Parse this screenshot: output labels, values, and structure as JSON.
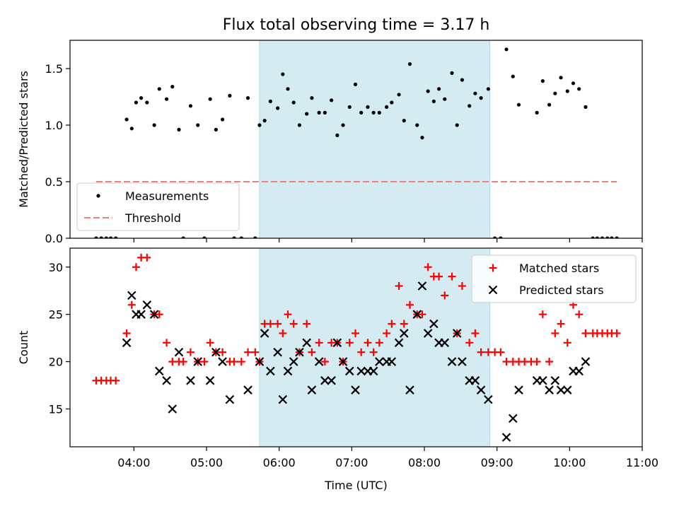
{
  "title": "Flux total observing time = 3.17 h",
  "colors": {
    "measurement": "#000000",
    "threshold": "#f08080",
    "matched": "#ff0000",
    "predicted": "#000000",
    "span": "#add8e6"
  },
  "chart_data": [
    {
      "type": "scatter",
      "ylabel": "Matched/Predicted stars",
      "ylim": [
        0,
        1.75
      ],
      "yticks": [
        0.0,
        0.5,
        1.0,
        1.5
      ],
      "xlim": [
        3.12,
        11.0
      ],
      "highlight_span": [
        5.73,
        8.9
      ],
      "legend": {
        "position": "lower-left",
        "entries": [
          "Measurements",
          "Threshold"
        ]
      },
      "threshold": {
        "name": "Threshold",
        "value": 0.5,
        "x_range": [
          3.48,
          10.65
        ]
      },
      "series": [
        {
          "name": "Measurements",
          "points": [
            [
              3.48,
              0
            ],
            [
              3.55,
              0
            ],
            [
              3.62,
              0
            ],
            [
              3.68,
              0
            ],
            [
              3.75,
              0
            ],
            [
              3.9,
              1.05
            ],
            [
              3.97,
              0.97
            ],
            [
              4.03,
              1.2
            ],
            [
              4.1,
              1.24
            ],
            [
              4.18,
              1.2
            ],
            [
              4.28,
              1.0
            ],
            [
              4.35,
              1.32
            ],
            [
              4.45,
              1.23
            ],
            [
              4.53,
              1.34
            ],
            [
              4.62,
              0.96
            ],
            [
              4.68,
              0
            ],
            [
              4.78,
              1.17
            ],
            [
              4.88,
              1.0
            ],
            [
              4.97,
              0
            ],
            [
              5.05,
              1.23
            ],
            [
              5.13,
              0.96
            ],
            [
              5.22,
              1.05
            ],
            [
              5.32,
              1.26
            ],
            [
              5.38,
              0
            ],
            [
              5.48,
              0
            ],
            [
              5.57,
              1.24
            ],
            [
              5.67,
              0
            ],
            [
              5.73,
              1.0
            ],
            [
              5.8,
              1.04
            ],
            [
              5.88,
              1.21
            ],
            [
              5.98,
              1.15
            ],
            [
              6.05,
              1.45
            ],
            [
              6.12,
              1.32
            ],
            [
              6.2,
              1.2
            ],
            [
              6.28,
              1.0
            ],
            [
              6.38,
              1.1
            ],
            [
              6.45,
              1.24
            ],
            [
              6.55,
              1.11
            ],
            [
              6.63,
              1.11
            ],
            [
              6.72,
              1.22
            ],
            [
              6.8,
              0.91
            ],
            [
              6.88,
              1.0
            ],
            [
              6.97,
              1.16
            ],
            [
              7.05,
              1.36
            ],
            [
              7.13,
              1.11
            ],
            [
              7.22,
              1.16
            ],
            [
              7.3,
              1.11
            ],
            [
              7.38,
              1.11
            ],
            [
              7.48,
              1.16
            ],
            [
              7.55,
              1.2
            ],
            [
              7.65,
              1.27
            ],
            [
              7.72,
              1.04
            ],
            [
              7.8,
              1.54
            ],
            [
              7.9,
              1.0
            ],
            [
              7.97,
              0.89
            ],
            [
              8.05,
              1.3
            ],
            [
              8.13,
              1.21
            ],
            [
              8.2,
              1.32
            ],
            [
              8.28,
              1.23
            ],
            [
              8.38,
              1.46
            ],
            [
              8.45,
              1.0
            ],
            [
              8.52,
              1.4
            ],
            [
              8.62,
              1.17
            ],
            [
              8.7,
              1.28
            ],
            [
              8.78,
              1.24
            ],
            [
              8.88,
              1.32
            ],
            [
              8.97,
              0
            ],
            [
              9.05,
              0
            ],
            [
              9.13,
              1.67
            ],
            [
              9.22,
              1.43
            ],
            [
              9.3,
              1.18
            ],
            [
              9.55,
              1.11
            ],
            [
              9.63,
              1.39
            ],
            [
              9.72,
              1.18
            ],
            [
              9.8,
              1.28
            ],
            [
              9.88,
              1.42
            ],
            [
              9.97,
              1.3
            ],
            [
              10.05,
              1.37
            ],
            [
              10.13,
              1.32
            ],
            [
              10.22,
              1.16
            ],
            [
              10.32,
              0
            ],
            [
              10.38,
              0
            ],
            [
              10.45,
              0
            ],
            [
              10.52,
              0
            ],
            [
              10.58,
              0
            ],
            [
              10.65,
              0
            ]
          ]
        }
      ]
    },
    {
      "type": "scatter",
      "ylabel": "Count",
      "xlabel": "Time (UTC)",
      "ylim": [
        11,
        32
      ],
      "yticks": [
        15,
        20,
        25,
        30
      ],
      "xlim": [
        3.12,
        11.0
      ],
      "xticks": [
        4,
        5,
        6,
        7,
        8,
        9,
        10,
        11
      ],
      "xtick_labels": [
        "04:00",
        "05:00",
        "06:00",
        "07:00",
        "08:00",
        "09:00",
        "10:00",
        "11:00"
      ],
      "highlight_span": [
        5.73,
        8.9
      ],
      "legend": {
        "position": "top-right",
        "entries": [
          "Matched stars",
          "Predicted stars"
        ]
      },
      "series": [
        {
          "name": "Matched stars",
          "points": [
            [
              3.48,
              18
            ],
            [
              3.55,
              18
            ],
            [
              3.62,
              18
            ],
            [
              3.68,
              18
            ],
            [
              3.75,
              18
            ],
            [
              3.9,
              23
            ],
            [
              3.97,
              26
            ],
            [
              4.03,
              30
            ],
            [
              4.1,
              31
            ],
            [
              4.18,
              31
            ],
            [
              4.28,
              25
            ],
            [
              4.35,
              25
            ],
            [
              4.45,
              22
            ],
            [
              4.53,
              20
            ],
            [
              4.62,
              20
            ],
            [
              4.68,
              20
            ],
            [
              4.78,
              21
            ],
            [
              4.88,
              20
            ],
            [
              4.97,
              20
            ],
            [
              5.05,
              22
            ],
            [
              5.13,
              21
            ],
            [
              5.22,
              21
            ],
            [
              5.32,
              20
            ],
            [
              5.38,
              20
            ],
            [
              5.48,
              20
            ],
            [
              5.57,
              21
            ],
            [
              5.67,
              21
            ],
            [
              5.73,
              20
            ],
            [
              5.8,
              24
            ],
            [
              5.88,
              24
            ],
            [
              5.98,
              24
            ],
            [
              6.05,
              23
            ],
            [
              6.12,
              25
            ],
            [
              6.2,
              24
            ],
            [
              6.28,
              21
            ],
            [
              6.38,
              24
            ],
            [
              6.45,
              21
            ],
            [
              6.55,
              22
            ],
            [
              6.63,
              20
            ],
            [
              6.72,
              22
            ],
            [
              6.8,
              22
            ],
            [
              6.88,
              20
            ],
            [
              6.97,
              22
            ],
            [
              7.05,
              23
            ],
            [
              7.13,
              21
            ],
            [
              7.22,
              22
            ],
            [
              7.3,
              21
            ],
            [
              7.38,
              22
            ],
            [
              7.48,
              23
            ],
            [
              7.55,
              24
            ],
            [
              7.65,
              28
            ],
            [
              7.72,
              24
            ],
            [
              7.8,
              26
            ],
            [
              7.9,
              25
            ],
            [
              7.97,
              25
            ],
            [
              8.05,
              30
            ],
            [
              8.13,
              29
            ],
            [
              8.2,
              29
            ],
            [
              8.28,
              27
            ],
            [
              8.38,
              29
            ],
            [
              8.45,
              23
            ],
            [
              8.52,
              28
            ],
            [
              8.62,
              22
            ],
            [
              8.7,
              23
            ],
            [
              8.78,
              21
            ],
            [
              8.88,
              21
            ],
            [
              8.97,
              21
            ],
            [
              9.05,
              21
            ],
            [
              9.13,
              20
            ],
            [
              9.22,
              20
            ],
            [
              9.3,
              20
            ],
            [
              9.38,
              20
            ],
            [
              9.47,
              20
            ],
            [
              9.55,
              20
            ],
            [
              9.63,
              25
            ],
            [
              9.72,
              20
            ],
            [
              9.8,
              23
            ],
            [
              9.88,
              24
            ],
            [
              9.97,
              22
            ],
            [
              10.05,
              26
            ],
            [
              10.13,
              25
            ],
            [
              10.22,
              23
            ],
            [
              10.32,
              23
            ],
            [
              10.38,
              23
            ],
            [
              10.45,
              23
            ],
            [
              10.52,
              23
            ],
            [
              10.58,
              23
            ],
            [
              10.65,
              23
            ]
          ]
        },
        {
          "name": "Predicted stars",
          "points": [
            [
              3.9,
              22
            ],
            [
              3.97,
              27
            ],
            [
              4.03,
              25
            ],
            [
              4.1,
              25
            ],
            [
              4.18,
              26
            ],
            [
              4.28,
              25
            ],
            [
              4.35,
              19
            ],
            [
              4.45,
              18
            ],
            [
              4.53,
              15
            ],
            [
              4.62,
              21
            ],
            [
              4.78,
              18
            ],
            [
              4.88,
              20
            ],
            [
              5.05,
              18
            ],
            [
              5.13,
              21
            ],
            [
              5.22,
              20
            ],
            [
              5.32,
              16
            ],
            [
              5.57,
              17
            ],
            [
              5.73,
              20
            ],
            [
              5.8,
              23
            ],
            [
              5.88,
              19
            ],
            [
              5.98,
              21
            ],
            [
              6.05,
              16
            ],
            [
              6.12,
              19
            ],
            [
              6.2,
              20
            ],
            [
              6.28,
              21
            ],
            [
              6.38,
              22
            ],
            [
              6.45,
              17
            ],
            [
              6.55,
              20
            ],
            [
              6.63,
              18
            ],
            [
              6.72,
              18
            ],
            [
              6.8,
              22
            ],
            [
              6.88,
              20
            ],
            [
              6.97,
              19
            ],
            [
              7.05,
              17
            ],
            [
              7.13,
              19
            ],
            [
              7.22,
              19
            ],
            [
              7.3,
              19
            ],
            [
              7.38,
              20
            ],
            [
              7.48,
              20
            ],
            [
              7.55,
              20
            ],
            [
              7.65,
              22
            ],
            [
              7.72,
              23
            ],
            [
              7.8,
              17
            ],
            [
              7.9,
              25
            ],
            [
              7.97,
              28
            ],
            [
              8.05,
              23
            ],
            [
              8.13,
              24
            ],
            [
              8.2,
              22
            ],
            [
              8.28,
              22
            ],
            [
              8.38,
              20
            ],
            [
              8.45,
              23
            ],
            [
              8.52,
              20
            ],
            [
              8.62,
              18
            ],
            [
              8.7,
              18
            ],
            [
              8.78,
              17
            ],
            [
              8.88,
              16
            ],
            [
              9.13,
              12
            ],
            [
              9.22,
              14
            ],
            [
              9.3,
              17
            ],
            [
              9.55,
              18
            ],
            [
              9.63,
              18
            ],
            [
              9.72,
              17
            ],
            [
              9.8,
              18
            ],
            [
              9.88,
              17
            ],
            [
              9.97,
              17
            ],
            [
              10.05,
              19
            ],
            [
              10.13,
              19
            ],
            [
              10.22,
              20
            ]
          ]
        }
      ]
    }
  ]
}
